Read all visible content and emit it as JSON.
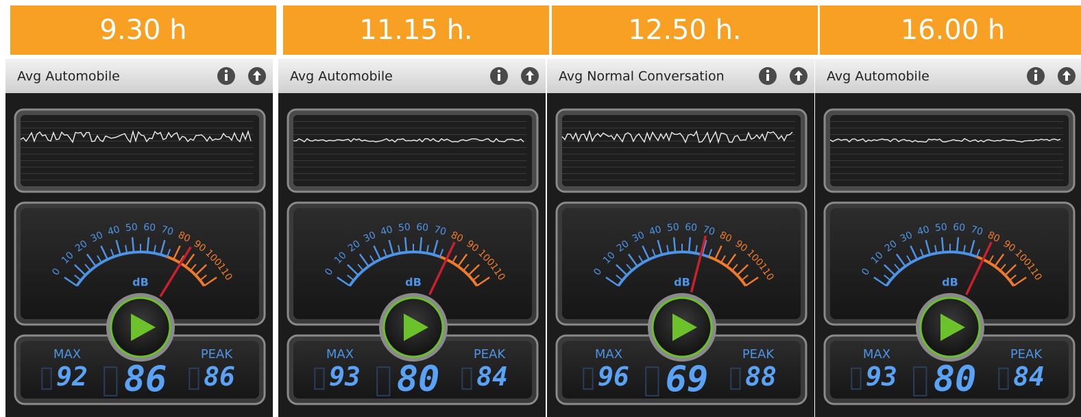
{
  "gauge": {
    "unit": "dB",
    "scale": [
      0,
      10,
      20,
      30,
      40,
      50,
      60,
      70,
      80,
      90,
      100,
      110
    ],
    "scale_colors": [
      "#4d94e6",
      "#4d94e6",
      "#4d94e6",
      "#4d94e6",
      "#4d94e6",
      "#4d94e6",
      "#4d94e6",
      "#4d94e6",
      "#f07a2c",
      "#f07a2c",
      "#f07a2c",
      "#f07a2c"
    ]
  },
  "labels": {
    "max": "MAX",
    "peak": "PEAK"
  },
  "panels": [
    {
      "time": "9.30 h",
      "title": "Avg Automobile",
      "max": 92,
      "current": 86,
      "peak": 86
    },
    {
      "time": "11.15 h.",
      "title": "Avg Automobile",
      "max": 93,
      "current": 80,
      "peak": 84
    },
    {
      "time": "12.50 h.",
      "title": "Avg Normal Conversation",
      "max": 96,
      "current": 69,
      "peak": 88
    },
    {
      "time": "16.00 h",
      "title": "Avg Automobile",
      "max": 93,
      "current": 80,
      "peak": 84
    }
  ]
}
